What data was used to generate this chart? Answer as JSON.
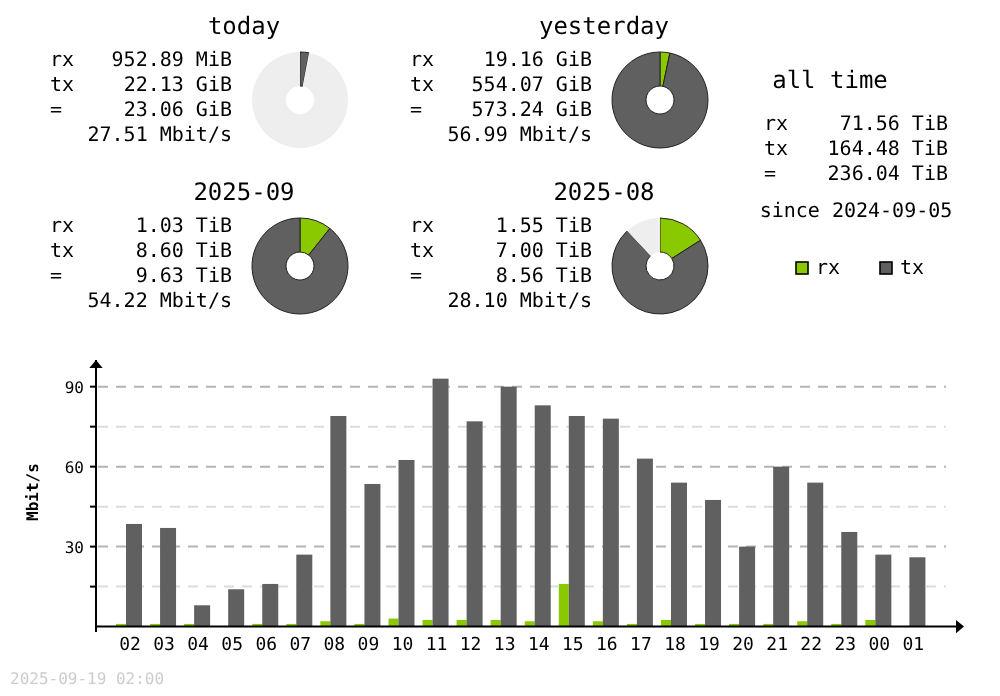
{
  "chart_data": [
    {
      "type": "donut",
      "title": "today",
      "categories": [
        null,
        null,
        null
      ],
      "values": [
        0,
        3,
        97
      ],
      "colors": [
        "#8ac800",
        "#606060",
        "#eeeeee"
      ],
      "annotations": [
        "rx 952.89 MiB",
        "tx 22.13 GiB",
        "= 23.06 GiB",
        "27.51 Mbit/s"
      ]
    },
    {
      "type": "donut",
      "title": "yesterday",
      "categories": [
        null,
        null,
        null
      ],
      "values": [
        3.3,
        96.7,
        0
      ],
      "colors": [
        "#8ac800",
        "#606060",
        "#eeeeee"
      ],
      "annotations": [
        "rx 19.16 GiB",
        "tx 554.07 GiB",
        "= 573.24 GiB",
        "56.99 Mbit/s"
      ]
    },
    {
      "type": "donut",
      "title": "2025-09",
      "categories": [
        null,
        null,
        null
      ],
      "values": [
        10.7,
        89.3,
        0
      ],
      "colors": [
        "#8ac800",
        "#606060",
        "#eeeeee"
      ],
      "annotations": [
        "rx 1.03 TiB",
        "tx 8.60 TiB",
        "= 9.63 TiB",
        "54.22 Mbit/s"
      ]
    },
    {
      "type": "donut",
      "title": "2025-08",
      "categories": [
        null,
        null,
        null
      ],
      "values": [
        16,
        72,
        12
      ],
      "colors": [
        "#8ac800",
        "#606060",
        "#eeeeee"
      ],
      "annotations": [
        "rx 1.55 TiB",
        "tx 7.00 TiB",
        "= 8.56 TiB",
        "28.10 Mbit/s"
      ]
    },
    {
      "type": "other",
      "title": "all time",
      "annotations": [
        "rx 71.56 TiB",
        "tx 164.48 TiB",
        "= 236.04 TiB",
        "since 2024-09-05"
      ]
    },
    {
      "type": "bar",
      "ylabel": "Mbit/s",
      "categories": [
        "02",
        "03",
        "04",
        "05",
        "06",
        "07",
        "08",
        "09",
        "10",
        "11",
        "12",
        "13",
        "14",
        "15",
        "16",
        "17",
        "18",
        "19",
        "20",
        "21",
        "22",
        "23",
        "00",
        "01"
      ],
      "series": [
        {
          "name": "rx",
          "color": "#8ac800",
          "values": [
            1,
            1,
            1,
            0,
            1,
            1,
            2,
            1,
            3,
            2.5,
            2.5,
            2.5,
            2,
            16,
            2,
            1,
            2.5,
            1,
            1,
            1,
            2,
            1,
            2.5,
            0
          ]
        },
        {
          "name": "tx",
          "color": "#606060",
          "values": [
            38.5,
            37,
            8,
            14,
            16,
            27,
            79,
            53.5,
            62.5,
            93,
            77,
            90,
            83,
            79,
            78,
            63,
            54,
            47.5,
            30,
            60,
            54,
            35.5,
            27,
            26
          ]
        }
      ],
      "ylim": [
        0,
        100
      ],
      "yticks": [
        {
          "value": 15,
          "label": null
        },
        30,
        {
          "value": 45,
          "label": null
        },
        60,
        {
          "value": 75,
          "label": null
        },
        90
      ],
      "grid": "y",
      "legend": "top right",
      "annotations": [
        "2025-09-19 02:00"
      ]
    }
  ]
}
